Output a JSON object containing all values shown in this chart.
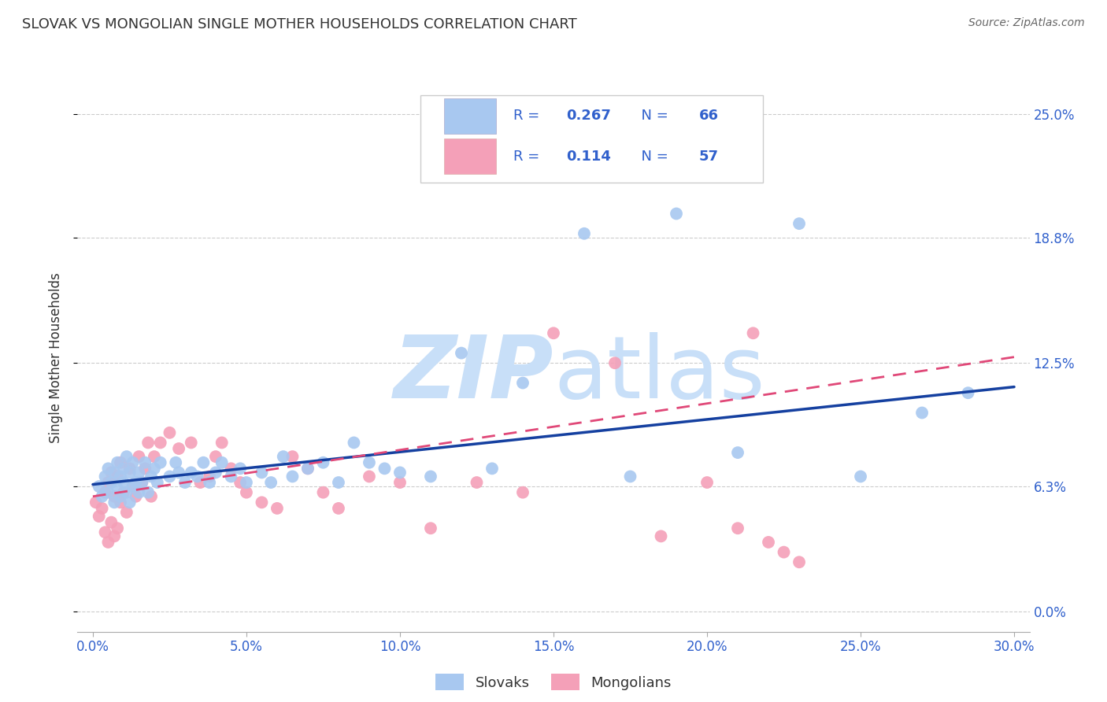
{
  "title": "SLOVAK VS MONGOLIAN SINGLE MOTHER HOUSEHOLDS CORRELATION CHART",
  "source": "Source: ZipAtlas.com",
  "ylabel": "Single Mother Households",
  "xlabel_ticks": [
    "0.0%",
    "5.0%",
    "10.0%",
    "15.0%",
    "20.0%",
    "25.0%",
    "30.0%"
  ],
  "xlabel_vals": [
    0.0,
    0.05,
    0.1,
    0.15,
    0.2,
    0.25,
    0.3
  ],
  "ylabel_ticks_right": [
    "0.0%",
    "6.3%",
    "12.5%",
    "18.8%",
    "25.0%"
  ],
  "ylabel_vals": [
    0.0,
    0.063,
    0.125,
    0.188,
    0.25
  ],
  "xlim": [
    -0.005,
    0.305
  ],
  "ylim": [
    -0.01,
    0.265
  ],
  "R_slovak": 0.267,
  "N_slovak": 66,
  "R_mongolian": 0.114,
  "N_mongolian": 57,
  "slovak_color": "#a8c8f0",
  "mongolian_color": "#f4a0b8",
  "slovak_line_color": "#1540a0",
  "mongolian_line_color": "#e04878",
  "watermark_color": "#c8dff8",
  "background_color": "#ffffff",
  "grid_color": "#cccccc",
  "title_color": "#333333",
  "axis_label_color": "#3060cc",
  "source_color": "#666666",
  "slovak_scatter_x": [
    0.002,
    0.003,
    0.004,
    0.005,
    0.005,
    0.006,
    0.007,
    0.007,
    0.008,
    0.008,
    0.009,
    0.009,
    0.01,
    0.01,
    0.011,
    0.011,
    0.012,
    0.012,
    0.013,
    0.013,
    0.014,
    0.015,
    0.015,
    0.016,
    0.017,
    0.018,
    0.019,
    0.02,
    0.021,
    0.022,
    0.025,
    0.027,
    0.028,
    0.03,
    0.032,
    0.034,
    0.036,
    0.038,
    0.04,
    0.042,
    0.045,
    0.048,
    0.05,
    0.055,
    0.058,
    0.062,
    0.065,
    0.07,
    0.075,
    0.08,
    0.085,
    0.09,
    0.095,
    0.1,
    0.11,
    0.12,
    0.13,
    0.14,
    0.16,
    0.175,
    0.19,
    0.21,
    0.23,
    0.25,
    0.27,
    0.285
  ],
  "slovak_scatter_y": [
    0.063,
    0.058,
    0.068,
    0.072,
    0.06,
    0.065,
    0.055,
    0.07,
    0.062,
    0.075,
    0.058,
    0.068,
    0.065,
    0.072,
    0.06,
    0.078,
    0.055,
    0.07,
    0.063,
    0.075,
    0.065,
    0.06,
    0.07,
    0.065,
    0.075,
    0.06,
    0.068,
    0.072,
    0.065,
    0.075,
    0.068,
    0.075,
    0.07,
    0.065,
    0.07,
    0.068,
    0.075,
    0.065,
    0.07,
    0.075,
    0.068,
    0.072,
    0.065,
    0.07,
    0.065,
    0.078,
    0.068,
    0.072,
    0.075,
    0.065,
    0.085,
    0.075,
    0.072,
    0.07,
    0.068,
    0.13,
    0.072,
    0.115,
    0.19,
    0.068,
    0.2,
    0.08,
    0.195,
    0.068,
    0.1,
    0.11
  ],
  "mongolian_scatter_x": [
    0.001,
    0.002,
    0.003,
    0.004,
    0.004,
    0.005,
    0.005,
    0.006,
    0.006,
    0.007,
    0.007,
    0.008,
    0.008,
    0.009,
    0.009,
    0.01,
    0.011,
    0.012,
    0.013,
    0.014,
    0.015,
    0.016,
    0.017,
    0.018,
    0.019,
    0.02,
    0.022,
    0.025,
    0.028,
    0.032,
    0.035,
    0.038,
    0.04,
    0.042,
    0.045,
    0.048,
    0.05,
    0.055,
    0.06,
    0.065,
    0.07,
    0.075,
    0.08,
    0.09,
    0.1,
    0.11,
    0.125,
    0.14,
    0.15,
    0.17,
    0.185,
    0.2,
    0.21,
    0.215,
    0.22,
    0.225,
    0.23
  ],
  "mongolian_scatter_y": [
    0.055,
    0.048,
    0.052,
    0.06,
    0.04,
    0.065,
    0.035,
    0.07,
    0.045,
    0.058,
    0.038,
    0.068,
    0.042,
    0.055,
    0.075,
    0.06,
    0.05,
    0.072,
    0.063,
    0.058,
    0.078,
    0.065,
    0.072,
    0.085,
    0.058,
    0.078,
    0.085,
    0.09,
    0.082,
    0.085,
    0.065,
    0.068,
    0.078,
    0.085,
    0.072,
    0.065,
    0.06,
    0.055,
    0.052,
    0.078,
    0.072,
    0.06,
    0.052,
    0.068,
    0.065,
    0.042,
    0.065,
    0.06,
    0.14,
    0.125,
    0.038,
    0.065,
    0.042,
    0.14,
    0.035,
    0.03,
    0.025
  ],
  "slovak_line_y0": 0.064,
  "slovak_line_y1": 0.113,
  "mongolian_line_y0": 0.058,
  "mongolian_line_y1": 0.128
}
